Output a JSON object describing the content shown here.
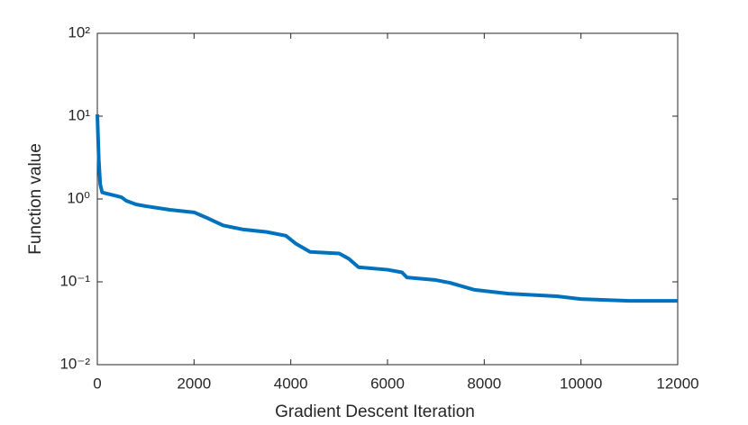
{
  "chart_data": {
    "type": "line",
    "xlabel": "Gradient Descent Iteration",
    "ylabel": "Function value",
    "x": [
      0,
      30,
      60,
      100,
      200,
      500,
      600,
      800,
      1000,
      1500,
      2000,
      2300,
      2600,
      3000,
      3500,
      3900,
      4100,
      4400,
      5000,
      5200,
      5400,
      6000,
      6300,
      6400,
      7000,
      7300,
      7800,
      8500,
      9500,
      10000,
      11000,
      12000
    ],
    "series": [
      {
        "color": "#0072bd",
        "values": [
          10.5,
          3,
          1.5,
          1.2,
          1.16,
          1.05,
          0.95,
          0.86,
          0.82,
          0.74,
          0.69,
          0.58,
          0.48,
          0.43,
          0.4,
          0.36,
          0.29,
          0.23,
          0.22,
          0.19,
          0.15,
          0.14,
          0.13,
          0.113,
          0.105,
          0.097,
          0.08,
          0.072,
          0.067,
          0.062,
          0.059,
          0.059
        ]
      }
    ],
    "xlim": [
      0,
      12000
    ],
    "xticks": [
      0,
      2000,
      4000,
      6000,
      8000,
      10000,
      12000
    ],
    "ylim": [
      0.01,
      100
    ],
    "yticks": [
      {
        "value": 0.01,
        "label": "10⁻²"
      },
      {
        "value": 0.1,
        "label": "10⁻¹"
      },
      {
        "value": 1,
        "label": "10⁰"
      },
      {
        "value": 10,
        "label": "10¹"
      },
      {
        "value": 100,
        "label": "10²"
      }
    ],
    "yscale": "log",
    "grid": false
  }
}
